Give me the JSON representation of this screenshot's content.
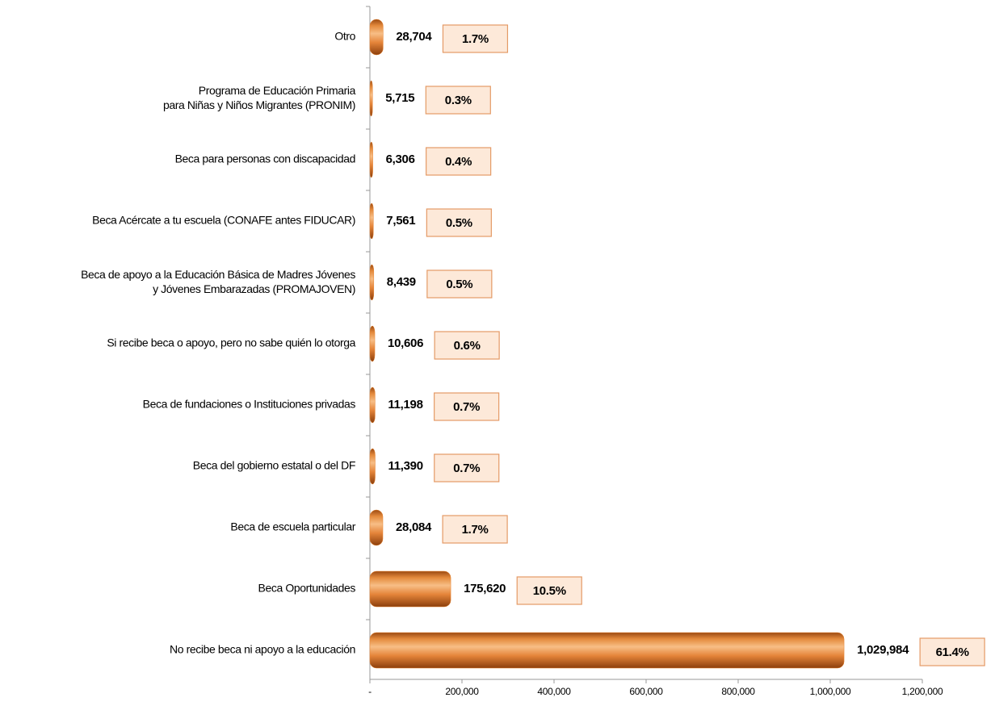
{
  "chart_data": {
    "type": "hbar",
    "categories": [
      "Otro",
      "Programa de Educación Primaria\npara Niñas y Niños Migrantes (PRONIM)",
      "Beca para personas con discapacidad",
      "Beca Acércate a tu escuela (CONAFE antes FIDUCAR)",
      "Beca de apoyo a la Educación Básica de Madres Jóvenes\ny Jóvenes Embarazadas (PROMAJOVEN)",
      "Si recibe beca o apoyo, pero no sabe quién lo otorga",
      "Beca de fundaciones o Instituciones privadas",
      "Beca del gobierno estatal o del DF",
      "Beca de escuela particular",
      "Beca Oportunidades",
      "No recibe beca ni apoyo a la educación"
    ],
    "values": [
      28704,
      5715,
      6306,
      7561,
      8439,
      10606,
      11198,
      11390,
      28084,
      175620,
      1029984
    ],
    "value_labels": [
      "28,704",
      "5,715",
      "6,306",
      "7,561",
      "8,439",
      "10,606",
      "11,198",
      "11,390",
      "28,084",
      "175,620",
      "1,029,984"
    ],
    "shares": [
      1.7,
      0.3,
      0.4,
      0.5,
      0.5,
      0.6,
      0.7,
      0.7,
      1.7,
      10.5,
      61.4
    ],
    "share_labels": [
      "1.7%",
      "0.3%",
      "0.4%",
      "0.5%",
      "0.5%",
      "0.6%",
      "0.7%",
      "0.7%",
      "1.7%",
      "10.5%",
      "61.4%"
    ],
    "color": "#e8832f",
    "xlim": [
      0,
      1200000
    ],
    "xticks": [
      {
        "value": 0,
        "label": "-"
      },
      {
        "value": 200000,
        "label": "200,000"
      },
      {
        "value": 400000,
        "label": "400,000"
      },
      {
        "value": 600000,
        "label": "600,000"
      },
      {
        "value": 800000,
        "label": "800,000"
      },
      {
        "value": 1000000,
        "label": "1,000,000"
      },
      {
        "value": 1200000,
        "label": "1,200,000"
      }
    ]
  }
}
